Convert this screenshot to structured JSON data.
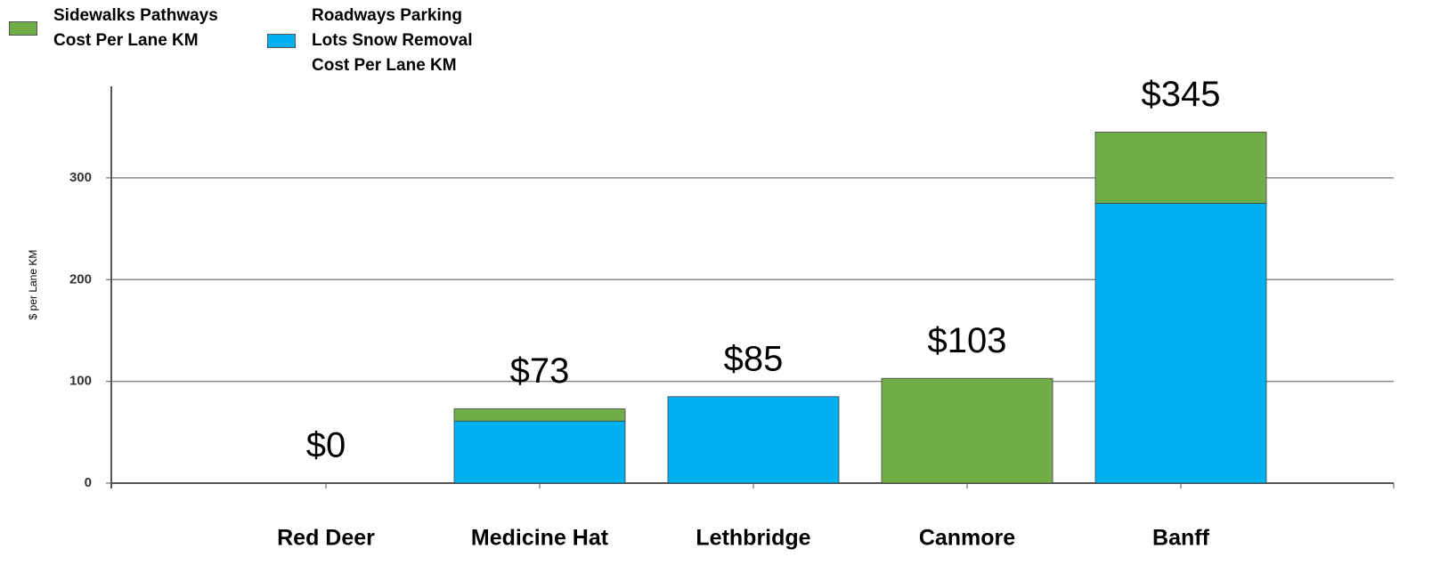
{
  "chart_data": {
    "type": "stacked_bar",
    "y_label": "$ per Lane KM",
    "categories": [
      "Red Deer",
      "Medicine Hat",
      "Lethbridge",
      "Canmore",
      "Banff"
    ],
    "series": [
      {
        "name": "Sidewalks Pathways Cost Per Lane KM",
        "color": "#70ad47",
        "values": [
          0,
          12,
          0,
          103,
          70
        ]
      },
      {
        "name": "Roadways Parking Lots Snow Removal Cost Per Lane KM",
        "color": "#00b0f0",
        "values": [
          0,
          61,
          85,
          0,
          275
        ]
      }
    ],
    "totals": [
      0,
      73,
      85,
      103,
      345
    ],
    "total_labels": [
      "$0",
      "$73",
      "$85",
      "$103",
      "$345"
    ],
    "ylim": [
      0,
      390
    ],
    "yticks": [
      0,
      100,
      200,
      300
    ],
    "grid": true,
    "legend": "top-left"
  }
}
